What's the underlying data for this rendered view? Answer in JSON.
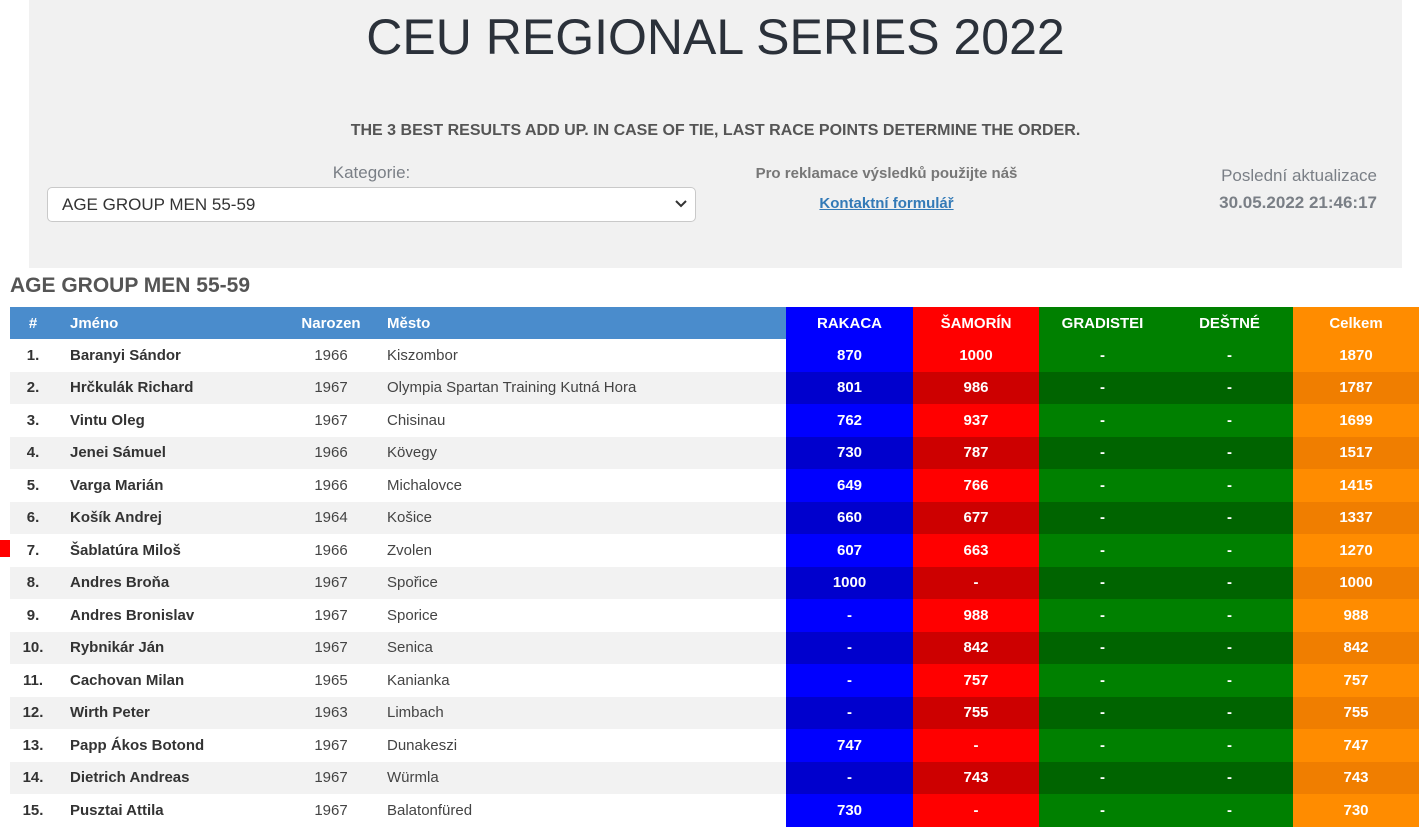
{
  "header": {
    "title": "CEU REGIONAL SERIES 2022",
    "subtitle": "THE 3 BEST RESULTS ADD UP. IN CASE OF TIE, LAST RACE POINTS DETERMINE THE ORDER.",
    "category_label": "Kategorie:",
    "category_selected": "AGE GROUP MEN 55-59",
    "reklamace_text": "Pro reklamace výsledků použijte náš",
    "contact_link": "Kontaktní formulář",
    "update_label": "Poslední aktualizace",
    "update_value": "30.05.2022 21:46:17"
  },
  "category_heading": "AGE GROUP MEN 55-59",
  "table": {
    "headers": {
      "rank": "#",
      "name": "Jméno",
      "year": "Narozen",
      "city": "Město",
      "race1": "RAKACA",
      "race2": "ŠAMORÍN",
      "race3": "GRADISTEI",
      "race4": "DEŠTNÉ",
      "total": "Celkem"
    },
    "rows": [
      {
        "rank": "1.",
        "name": "Baranyi Sándor",
        "year": "1966",
        "city": "Kiszombor",
        "r1": "870",
        "r2": "1000",
        "r3": "-",
        "r4": "-",
        "total": "1870"
      },
      {
        "rank": "2.",
        "name": "Hrčkulák Richard",
        "year": "1967",
        "city": "Olympia Spartan Training Kutná Hora",
        "r1": "801",
        "r2": "986",
        "r3": "-",
        "r4": "-",
        "total": "1787"
      },
      {
        "rank": "3.",
        "name": "Vintu Oleg",
        "year": "1967",
        "city": "Chisinau",
        "r1": "762",
        "r2": "937",
        "r3": "-",
        "r4": "-",
        "total": "1699"
      },
      {
        "rank": "4.",
        "name": "Jenei Sámuel",
        "year": "1966",
        "city": "Kövegy",
        "r1": "730",
        "r2": "787",
        "r3": "-",
        "r4": "-",
        "total": "1517"
      },
      {
        "rank": "5.",
        "name": "Varga Marián",
        "year": "1966",
        "city": "Michalovce",
        "r1": "649",
        "r2": "766",
        "r3": "-",
        "r4": "-",
        "total": "1415"
      },
      {
        "rank": "6.",
        "name": "Košík Andrej",
        "year": "1964",
        "city": "Košice",
        "r1": "660",
        "r2": "677",
        "r3": "-",
        "r4": "-",
        "total": "1337"
      },
      {
        "rank": "7.",
        "name": "Šablatúra Miloš",
        "year": "1966",
        "city": "Zvolen",
        "r1": "607",
        "r2": "663",
        "r3": "-",
        "r4": "-",
        "total": "1270"
      },
      {
        "rank": "8.",
        "name": "Andres Broňa",
        "year": "1967",
        "city": "Spořice",
        "r1": "1000",
        "r2": "-",
        "r3": "-",
        "r4": "-",
        "total": "1000"
      },
      {
        "rank": "9.",
        "name": "Andres Bronislav",
        "year": "1967",
        "city": "Sporice",
        "r1": "-",
        "r2": "988",
        "r3": "-",
        "r4": "-",
        "total": "988"
      },
      {
        "rank": "10.",
        "name": "Rybnikár Ján",
        "year": "1967",
        "city": "Senica",
        "r1": "-",
        "r2": "842",
        "r3": "-",
        "r4": "-",
        "total": "842"
      },
      {
        "rank": "11.",
        "name": "Cachovan Milan",
        "year": "1965",
        "city": "Kanianka",
        "r1": "-",
        "r2": "757",
        "r3": "-",
        "r4": "-",
        "total": "757"
      },
      {
        "rank": "12.",
        "name": "Wirth Peter",
        "year": "1963",
        "city": "Limbach",
        "r1": "-",
        "r2": "755",
        "r3": "-",
        "r4": "-",
        "total": "755"
      },
      {
        "rank": "13.",
        "name": "Papp Ákos Botond",
        "year": "1967",
        "city": "Dunakeszi",
        "r1": "747",
        "r2": "-",
        "r3": "-",
        "r4": "-",
        "total": "747"
      },
      {
        "rank": "14.",
        "name": "Dietrich Andreas",
        "year": "1967",
        "city": "Würmla",
        "r1": "-",
        "r2": "743",
        "r3": "-",
        "r4": "-",
        "total": "743"
      },
      {
        "rank": "15.",
        "name": "Pusztai Attila",
        "year": "1967",
        "city": "Balatonfüred",
        "r1": "730",
        "r2": "-",
        "r3": "-",
        "r4": "-",
        "total": "730"
      }
    ]
  },
  "colors": {
    "header_base": "#4a8ccc",
    "race1": "#0000ff",
    "race2": "#ff0000",
    "race3": "#008000",
    "race4": "#008000",
    "total": "#ff8c00",
    "link": "#337ab7",
    "row_marker": "#ff0000"
  }
}
